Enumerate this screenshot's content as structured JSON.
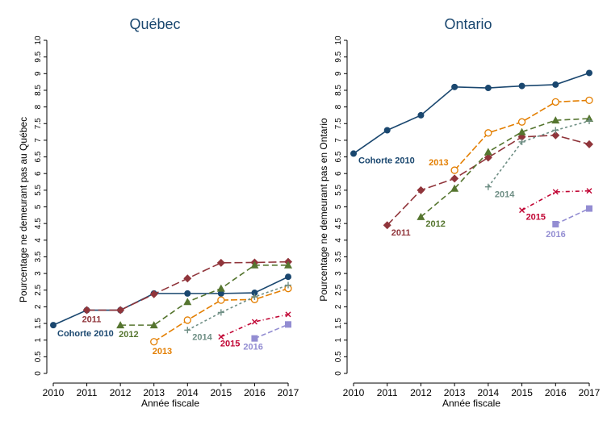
{
  "chart_data": [
    {
      "type": "line",
      "title": "Québec",
      "ylabel": "Pourcentage ne demeurant pas au Québec",
      "xlabel": "Année fiscale",
      "x": [
        2010,
        2011,
        2012,
        2013,
        2014,
        2015,
        2016,
        2017
      ],
      "xlim": [
        2010,
        2017
      ],
      "xticks": [
        2010,
        2011,
        2012,
        2013,
        2014,
        2015,
        2016,
        2017
      ],
      "ylim": [
        0,
        10
      ],
      "yticks": [
        0,
        0.5,
        1,
        1.5,
        2,
        2.5,
        3,
        3.5,
        4,
        4.5,
        5,
        5.5,
        6,
        6.5,
        7,
        7.5,
        8,
        8.5,
        9,
        9.5,
        10
      ],
      "series": [
        {
          "name": "Cohorte 2010",
          "color": "#1a476f",
          "marker": "circle",
          "values": [
            1.45,
            1.9,
            1.9,
            2.4,
            2.4,
            2.4,
            2.42,
            2.9
          ]
        },
        {
          "name": "2011",
          "color": "#90353b",
          "marker": "diamond",
          "values": [
            null,
            1.9,
            1.9,
            2.38,
            2.85,
            3.32,
            3.33,
            3.35
          ]
        },
        {
          "name": "2012",
          "color": "#55752f",
          "marker": "triangle",
          "values": [
            null,
            null,
            1.45,
            1.45,
            2.15,
            2.55,
            3.25,
            3.25
          ]
        },
        {
          "name": "2013",
          "color": "#e37e00",
          "marker": "open-circle",
          "values": [
            null,
            null,
            null,
            0.95,
            1.6,
            2.2,
            2.22,
            2.55
          ]
        },
        {
          "name": "2014",
          "color": "#6e8e84",
          "marker": "plus",
          "values": [
            null,
            null,
            null,
            null,
            1.3,
            1.83,
            2.3,
            2.65
          ]
        },
        {
          "name": "2015",
          "color": "#c10534",
          "marker": "cross",
          "values": [
            null,
            null,
            null,
            null,
            null,
            1.1,
            1.55,
            1.77
          ]
        },
        {
          "name": "2016",
          "color": "#938dd2",
          "marker": "square",
          "values": [
            null,
            null,
            null,
            null,
            null,
            null,
            1.05,
            1.47
          ]
        }
      ]
    },
    {
      "type": "line",
      "title": "Ontario",
      "ylabel": "Pourcentage ne demeurant pas en Ontario",
      "xlabel": "Année fiscale",
      "x": [
        2010,
        2011,
        2012,
        2013,
        2014,
        2015,
        2016,
        2017
      ],
      "xlim": [
        2010,
        2017
      ],
      "xticks": [
        2010,
        2011,
        2012,
        2013,
        2014,
        2015,
        2016,
        2017
      ],
      "ylim": [
        0,
        10
      ],
      "yticks": [
        0,
        0.5,
        1,
        1.5,
        2,
        2.5,
        3,
        3.5,
        4,
        4.5,
        5,
        5.5,
        6,
        6.5,
        7,
        7.5,
        8,
        8.5,
        9,
        9.5,
        10
      ],
      "series": [
        {
          "name": "Cohorte 2010",
          "color": "#1a476f",
          "marker": "circle",
          "values": [
            6.6,
            7.3,
            7.75,
            8.6,
            8.57,
            8.63,
            8.67,
            9.02
          ]
        },
        {
          "name": "2011",
          "color": "#90353b",
          "marker": "diamond",
          "values": [
            null,
            4.45,
            5.5,
            5.85,
            6.48,
            7.1,
            7.15,
            6.88
          ]
        },
        {
          "name": "2012",
          "color": "#55752f",
          "marker": "triangle",
          "values": [
            null,
            null,
            4.7,
            5.55,
            6.65,
            7.25,
            7.6,
            7.65
          ]
        },
        {
          "name": "2013",
          "color": "#e37e00",
          "marker": "open-circle",
          "values": [
            null,
            null,
            null,
            6.1,
            7.22,
            7.55,
            8.15,
            8.2
          ]
        },
        {
          "name": "2014",
          "color": "#6e8e84",
          "marker": "plus",
          "values": [
            null,
            null,
            null,
            null,
            5.6,
            6.95,
            7.3,
            7.58
          ]
        },
        {
          "name": "2015",
          "color": "#c10534",
          "marker": "cross",
          "values": [
            null,
            null,
            null,
            null,
            null,
            4.9,
            5.45,
            5.48
          ]
        },
        {
          "name": "2016",
          "color": "#938dd2",
          "marker": "square",
          "values": [
            null,
            null,
            null,
            null,
            null,
            null,
            4.48,
            4.95
          ]
        }
      ]
    }
  ]
}
